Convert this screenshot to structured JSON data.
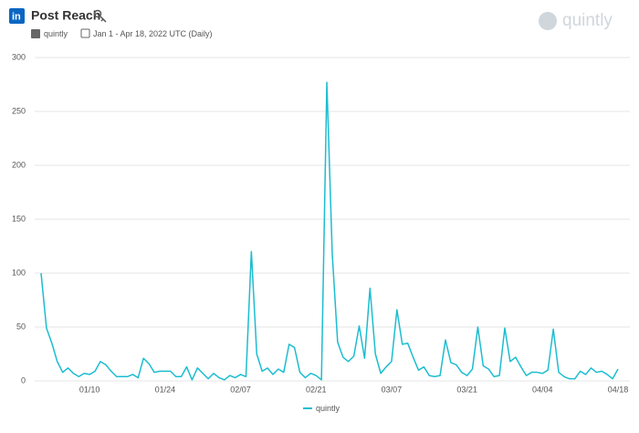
{
  "header": {
    "title": "Post Reach",
    "account": "quintly",
    "date_range": "Jan 1 - Apr 18, 2022 UTC (Daily)",
    "logo": "quintly"
  },
  "chart_data": {
    "type": "line",
    "categories": [
      null,
      null,
      null,
      null,
      null,
      null,
      null,
      null,
      null,
      "01/10",
      null,
      null,
      null,
      null,
      null,
      null,
      null,
      null,
      null,
      null,
      null,
      null,
      null,
      "01/24",
      null,
      null,
      null,
      null,
      null,
      null,
      null,
      null,
      null,
      null,
      null,
      null,
      null,
      "02/07",
      null,
      null,
      null,
      null,
      null,
      null,
      null,
      null,
      null,
      null,
      null,
      null,
      null,
      "02/21",
      null,
      null,
      null,
      null,
      null,
      null,
      null,
      null,
      null,
      null,
      null,
      null,
      null,
      "03/07",
      null,
      null,
      null,
      null,
      null,
      null,
      null,
      null,
      null,
      null,
      null,
      null,
      null,
      "03/21",
      null,
      null,
      null,
      null,
      null,
      null,
      null,
      null,
      null,
      null,
      null,
      null,
      null,
      "04/04",
      null,
      null,
      null,
      null,
      null,
      null,
      null,
      null,
      null,
      null,
      null,
      null,
      null,
      "04/18"
    ],
    "series": [
      {
        "name": "quintly",
        "color": "#1cbdd0",
        "values": [
          100,
          49,
          35,
          18,
          8,
          12,
          7,
          4,
          7,
          6,
          9,
          18,
          15,
          9,
          4,
          4,
          4,
          6,
          3,
          21,
          16,
          8,
          9,
          9,
          9,
          4,
          4,
          13,
          1,
          12,
          7,
          2,
          7,
          3,
          1,
          5,
          3,
          6,
          4,
          120,
          25,
          9,
          12,
          6,
          11,
          8,
          34,
          31,
          8,
          3,
          7,
          5,
          1,
          277,
          118,
          36,
          22,
          18,
          23,
          51,
          21,
          86,
          25,
          7,
          13,
          18,
          66,
          34,
          35,
          22,
          10,
          13,
          5,
          4,
          5,
          38,
          17,
          15,
          8,
          5,
          11,
          50,
          14,
          11,
          4,
          5,
          49,
          18,
          22,
          13,
          5,
          8,
          8,
          7,
          10,
          48,
          8,
          4,
          2,
          2,
          9,
          6,
          12,
          8,
          9,
          6,
          2,
          11
        ]
      }
    ],
    "ylim": [
      0,
      300
    ],
    "yticks": [
      0,
      50,
      100,
      150,
      200,
      250,
      300
    ],
    "grid": true
  }
}
